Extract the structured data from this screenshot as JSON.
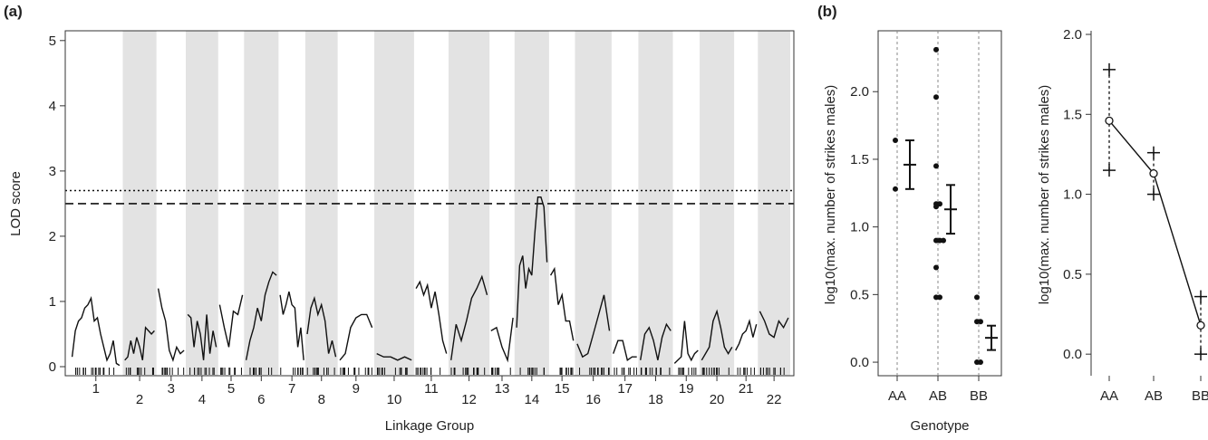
{
  "chart_data": [
    {
      "type": "line",
      "panel_label": "(a)",
      "xlabel": "Linkage Group",
      "ylabel": "LOD score",
      "ylim": [
        0,
        5.15
      ],
      "yticks": [
        0,
        1,
        2,
        3,
        4,
        5
      ],
      "grid": false,
      "thresholds": [
        {
          "style": "dotted",
          "value": 2.7
        },
        {
          "style": "dashed",
          "value": 2.5
        }
      ],
      "groups": [
        "1",
        "2",
        "3",
        "4",
        "5",
        "6",
        "7",
        "8",
        "9",
        "10",
        "11",
        "12",
        "13",
        "14",
        "15",
        "16",
        "17",
        "18",
        "19",
        "20",
        "21",
        "22"
      ],
      "group_widths": [
        1.25,
        0.78,
        0.68,
        0.75,
        0.6,
        0.8,
        0.62,
        0.75,
        0.85,
        0.92,
        0.8,
        0.95,
        0.58,
        0.8,
        0.6,
        0.85,
        0.62,
        0.8,
        0.62,
        0.8,
        0.55,
        0.75
      ],
      "shaded_groups": [
        "2",
        "4",
        "6",
        "8",
        "10",
        "12",
        "14",
        "16",
        "18",
        "20",
        "22"
      ],
      "series": [
        {
          "group": "1",
          "lod": [
            0.15,
            0.55,
            0.7,
            0.75,
            0.9,
            0.95,
            1.05,
            0.7,
            0.75,
            0.5,
            0.3,
            0.1,
            0.2,
            0.4,
            0.05,
            0.02
          ]
        },
        {
          "group": "2",
          "lod": [
            0.1,
            0.15,
            0.4,
            0.2,
            0.45,
            0.3,
            0.1,
            0.6,
            0.55,
            0.5,
            0.55
          ]
        },
        {
          "group": "3",
          "lod": [
            1.2,
            0.9,
            0.7,
            0.25,
            0.1,
            0.3,
            0.2,
            0.25
          ]
        },
        {
          "group": "4",
          "lod": [
            0.8,
            0.75,
            0.3,
            0.7,
            0.5,
            0.1,
            0.8,
            0.2,
            0.55,
            0.3
          ]
        },
        {
          "group": "5",
          "lod": [
            0.95,
            0.6,
            0.3,
            0.85,
            0.8,
            1.1
          ]
        },
        {
          "group": "6",
          "lod": [
            0.1,
            0.4,
            0.6,
            0.9,
            0.7,
            1.1,
            1.3,
            1.45,
            1.4
          ]
        },
        {
          "group": "7",
          "lod": [
            1.1,
            0.8,
            0.95,
            1.15,
            0.95,
            0.9,
            0.3,
            0.6,
            0.1
          ]
        },
        {
          "group": "8",
          "lod": [
            0.5,
            0.9,
            1.05,
            0.8,
            0.95,
            0.7,
            0.2,
            0.4,
            0.15
          ]
        },
        {
          "group": "9",
          "lod": [
            0.1,
            0.2,
            0.6,
            0.75,
            0.8,
            0.8,
            0.6
          ]
        },
        {
          "group": "10",
          "lod": [
            0.2,
            0.15,
            0.15,
            0.1,
            0.15,
            0.1
          ]
        },
        {
          "group": "11",
          "lod": [
            1.2,
            1.3,
            1.1,
            1.25,
            0.9,
            1.15,
            0.8,
            0.4,
            0.2
          ]
        },
        {
          "group": "12",
          "lod": [
            0.1,
            0.65,
            0.4,
            0.7,
            1.05,
            1.2,
            1.38,
            1.1
          ]
        },
        {
          "group": "13",
          "lod": [
            0.55,
            0.6,
            0.3,
            0.1,
            0.75
          ]
        },
        {
          "group": "14",
          "lod": [
            0.6,
            1.55,
            1.7,
            1.2,
            1.5,
            1.4,
            2.05,
            2.6,
            2.6,
            2.45,
            1.6
          ]
        },
        {
          "group": "15",
          "lod": [
            1.4,
            1.5,
            0.95,
            1.1,
            0.7,
            0.7,
            0.4
          ]
        },
        {
          "group": "16",
          "lod": [
            0.35,
            0.15,
            0.2,
            0.5,
            0.8,
            1.1,
            0.55
          ]
        },
        {
          "group": "17",
          "lod": [
            0.2,
            0.4,
            0.4,
            0.1,
            0.15,
            0.15
          ]
        },
        {
          "group": "18",
          "lod": [
            0.1,
            0.5,
            0.6,
            0.4,
            0.1,
            0.45,
            0.65,
            0.55
          ]
        },
        {
          "group": "19",
          "lod": [
            0.05,
            0.1,
            0.15,
            0.7,
            0.2,
            0.1,
            0.2,
            0.25
          ]
        },
        {
          "group": "20",
          "lod": [
            0.1,
            0.2,
            0.3,
            0.7,
            0.85,
            0.6,
            0.3,
            0.2,
            0.3
          ]
        },
        {
          "group": "21",
          "lod": [
            0.25,
            0.35,
            0.5,
            0.55,
            0.7,
            0.45,
            0.65
          ]
        },
        {
          "group": "22",
          "lod": [
            0.85,
            0.7,
            0.5,
            0.45,
            0.7,
            0.6,
            0.75
          ]
        }
      ]
    },
    {
      "type": "scatter",
      "panel_label": "(b)",
      "xlabel": "Genotype",
      "ylabel": "log10(max. number of strikes males)",
      "categories": [
        "AA",
        "AB",
        "BB"
      ],
      "ylim": [
        -0.1,
        2.45
      ],
      "yticks": [
        "0.0",
        "0.5",
        "1.0",
        "1.5",
        "2.0"
      ],
      "points": {
        "AA": [
          1.28,
          1.64
        ],
        "AB": [
          2.31,
          1.96,
          1.45,
          1.17,
          1.17,
          1.15,
          0.9,
          0.9,
          0.9,
          0.7,
          0.48,
          0.48
        ],
        "BB": [
          0.48,
          0.3,
          0.3,
          0.0,
          0.0
        ]
      },
      "means": [
        1.46,
        1.13,
        0.18
      ],
      "errors": [
        0.18,
        0.18,
        0.09
      ]
    },
    {
      "type": "line",
      "xlabel": "",
      "ylabel": "log10(max. number of strikes males)",
      "categories": [
        "AA",
        "AB",
        "BB"
      ],
      "ylim": [
        -0.05,
        2.0
      ],
      "yticks": [
        "0.0",
        "0.5",
        "1.0",
        "1.5",
        "2.0"
      ],
      "means": [
        1.46,
        1.13,
        0.18
      ],
      "upper": [
        1.78,
        1.26,
        0.36
      ],
      "lower": [
        1.15,
        1.0,
        0.0
      ]
    }
  ]
}
